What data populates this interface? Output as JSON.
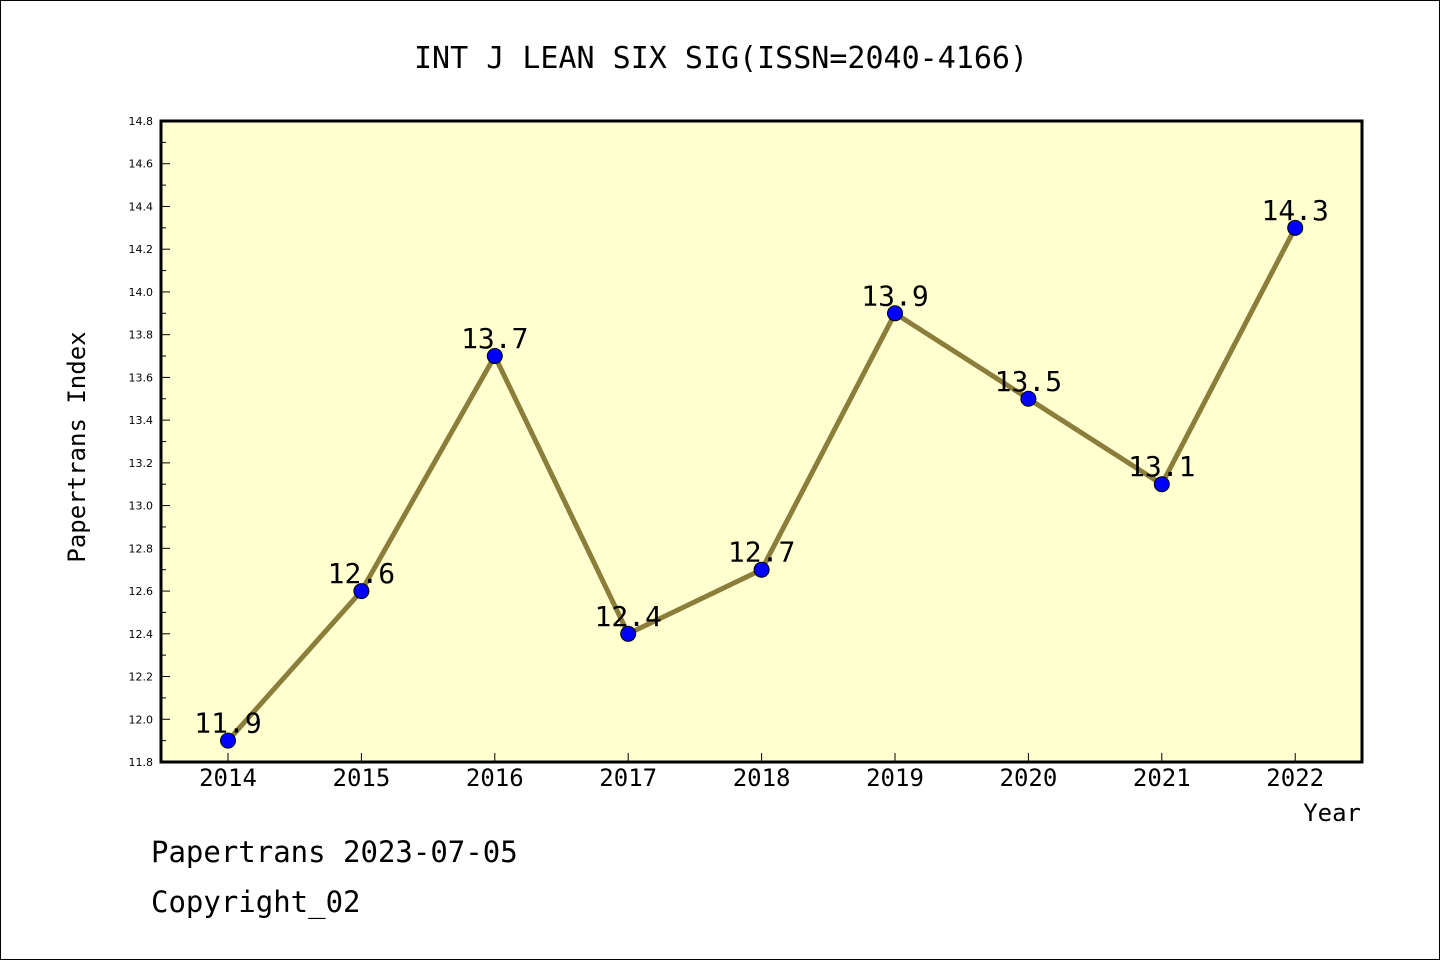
{
  "chart_data": {
    "type": "line",
    "title": "INT J LEAN SIX SIG(ISSN=2040-4166)",
    "xlabel": "Year",
    "ylabel": "Papertrans Index",
    "categories": [
      "2014",
      "2015",
      "2016",
      "2017",
      "2018",
      "2019",
      "2020",
      "2021",
      "2022"
    ],
    "series": [
      {
        "values": [
          11.9,
          12.6,
          13.7,
          12.4,
          12.7,
          13.9,
          13.5,
          13.1,
          14.3
        ],
        "data_labels": [
          "11.9",
          "12.6",
          "13.7",
          "12.4",
          "12.7",
          "13.9",
          "13.5",
          "13.1",
          "14.3"
        ]
      }
    ],
    "ylim": [
      11.8,
      14.8
    ],
    "yticks": [
      "11.8",
      "12.0",
      "12.2",
      "12.4",
      "12.6",
      "12.8",
      "13.0",
      "13.2",
      "13.4",
      "13.6",
      "13.8",
      "14.0",
      "14.2",
      "14.4",
      "14.6",
      "14.8"
    ],
    "grid": false,
    "legend": "none",
    "colors": {
      "plot_background": "#ffffd0",
      "line": "#8b7d3a",
      "marker": "#0000ff"
    }
  },
  "footer": {
    "line1": "Papertrans 2023-07-05",
    "line2": "Copyright_02"
  }
}
